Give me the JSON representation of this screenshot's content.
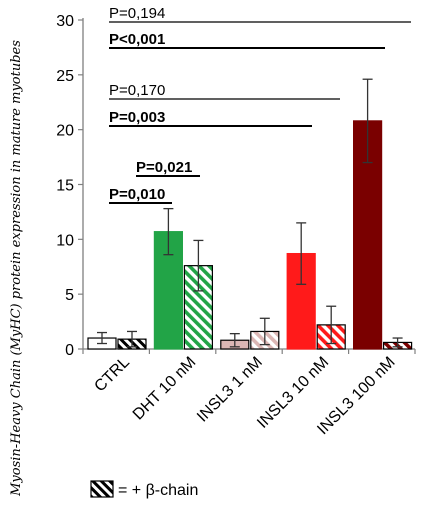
{
  "chart_data": {
    "type": "bar",
    "ylabel": "Myosin-Heavy Chain (MyHC) protein expression in mature myotubes",
    "ylim": [
      0,
      30
    ],
    "yticks": [
      "0",
      "5",
      "10",
      "15",
      "20",
      "25",
      "30"
    ],
    "categories": [
      "CTRL",
      "DHT 10 nM",
      "INSL3 1 nM",
      "INSL3 10 nM",
      "INSL3 100 nM"
    ],
    "colors": [
      "#ffffff",
      "#22a447",
      "#dbb6b4",
      "#ff1a1a",
      "#7a0000"
    ],
    "series": [
      {
        "values": [
          1.0,
          10.7,
          0.8,
          8.7,
          20.8
        ],
        "errors": [
          0.5,
          2.1,
          0.6,
          2.8,
          3.8
        ],
        "hatched": false
      },
      {
        "values": [
          0.9,
          7.6,
          1.6,
          2.2,
          0.6
        ],
        "errors": [
          0.7,
          2.3,
          1.2,
          1.7,
          0.4
        ],
        "hatched": true
      }
    ],
    "significance": [
      {
        "label": "P=0,194",
        "bold": false
      },
      {
        "label": "P<0,001",
        "bold": true
      },
      {
        "label": "P=0,170",
        "bold": false
      },
      {
        "label": "P=0,003",
        "bold": true
      },
      {
        "label": "P=0,021",
        "bold": true
      },
      {
        "label": "P=0,010",
        "bold": true
      }
    ],
    "legend": {
      "label": "= + β-chain"
    }
  }
}
